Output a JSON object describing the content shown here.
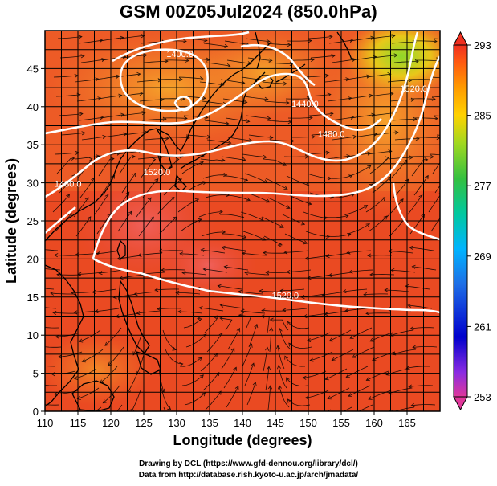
{
  "title": "GSM 00Z05Jul2024 (850.0hPa)",
  "xlabel": "Longitude (degrees)",
  "ylabel": "Latitude  (degrees)",
  "x_ticks": [
    "110",
    "115",
    "120",
    "125",
    "130",
    "135",
    "140",
    "145",
    "150",
    "155",
    "160",
    "165"
  ],
  "y_ticks": [
    "0",
    "5",
    "10",
    "15",
    "20",
    "25",
    "30",
    "35",
    "40",
    "45"
  ],
  "colorbar": {
    "ticks": [
      "293",
      "285",
      "277",
      "269",
      "261",
      "253"
    ],
    "min": 253,
    "max": 293,
    "colors": [
      "#e0389a",
      "#8a2be2",
      "#0000cd",
      "#1e6ee6",
      "#00b4ff",
      "#00c8a0",
      "#34c040",
      "#a0d820",
      "#ffd200",
      "#ff9a00",
      "#ff5a10",
      "#f03020"
    ]
  },
  "map": {
    "lon_range": [
      110,
      170
    ],
    "lat_range": [
      0,
      50
    ],
    "field_variable": "temperature (K)",
    "contour_variable": "geopotential height (m)",
    "contour_labels": [
      {
        "text": "1400.0",
        "lon": 130.5,
        "lat": 46.5
      },
      {
        "text": "1440.0",
        "lon": 149.5,
        "lat": 40.0
      },
      {
        "text": "1480.0",
        "lon": 153.5,
        "lat": 36.0
      },
      {
        "text": "1480.0",
        "lon": 113.5,
        "lat": 29.5
      },
      {
        "text": "1520.0",
        "lon": 127.0,
        "lat": 31.0
      },
      {
        "text": "1520.0",
        "lon": 166.0,
        "lat": 42.0
      },
      {
        "text": "1520.0",
        "lon": 146.5,
        "lat": 14.8
      }
    ]
  },
  "footer": {
    "line1": "Drawing by DCL (https://www.gfd-dennou.org/library/dcl/)",
    "line2": "Data from http://database.rish.kyoto-u.ac.jp/arch/jmadata/"
  }
}
